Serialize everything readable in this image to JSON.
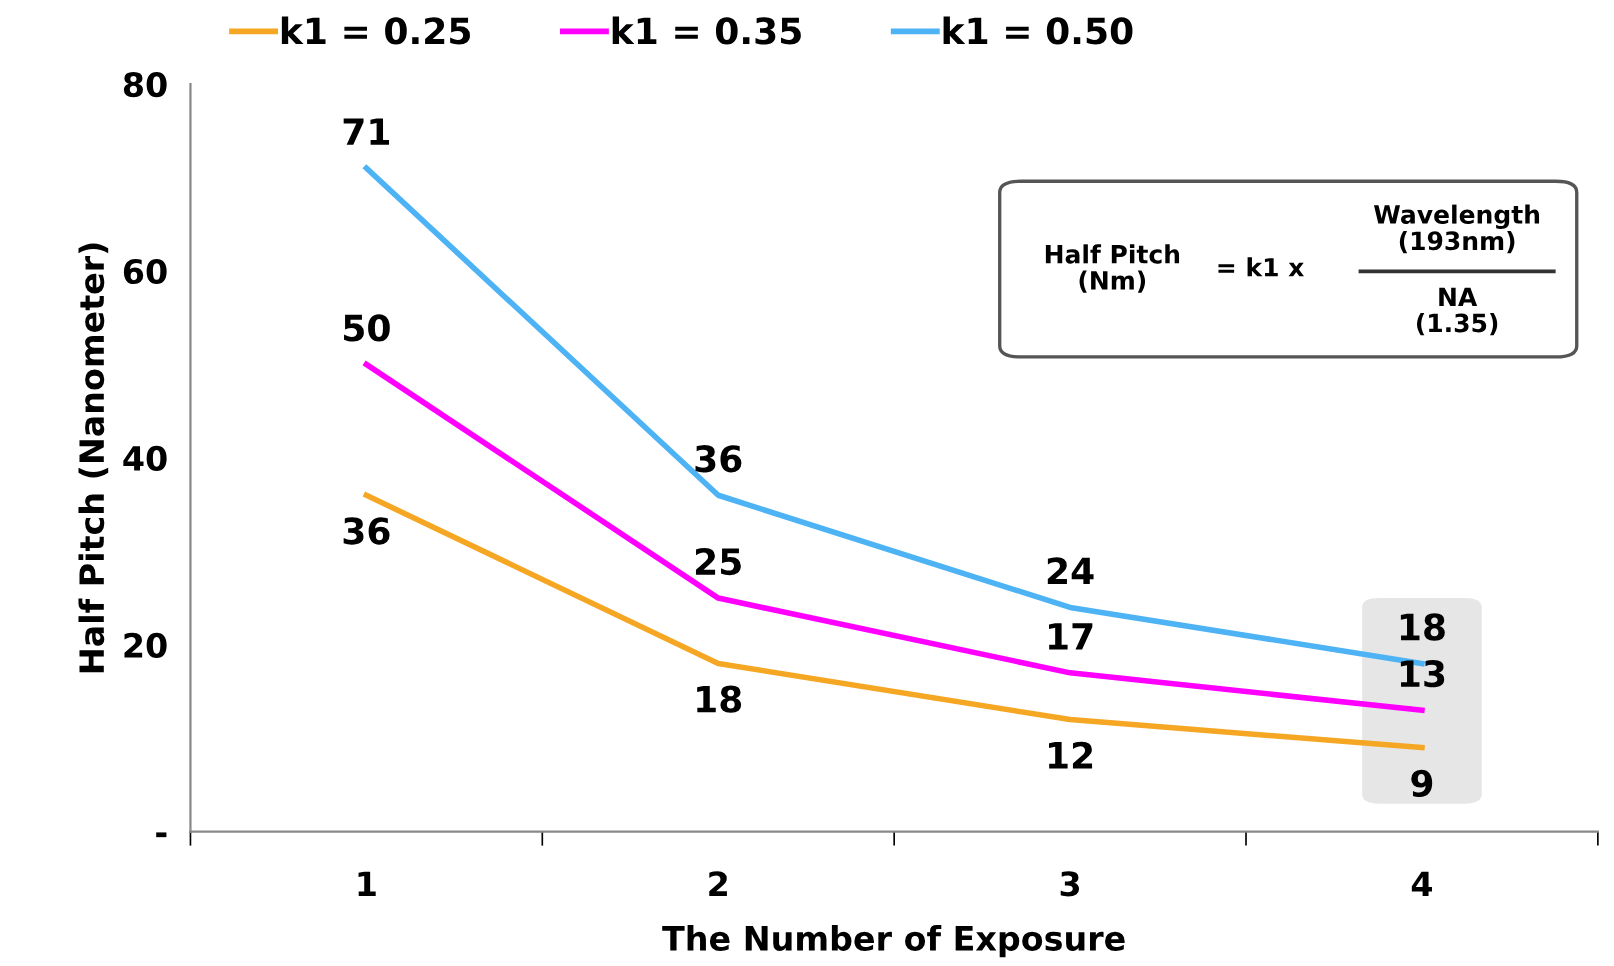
{
  "chart_data": {
    "type": "line",
    "xlabel": "The Number of Exposure",
    "ylabel": "Half Pitch (Nanometer)",
    "categories": [
      "1",
      "2",
      "3",
      "4"
    ],
    "series": [
      {
        "name": "k1 = 0.25",
        "color": "#f5a623",
        "values": [
          36,
          18,
          12,
          9
        ]
      },
      {
        "name": "k1 = 0.35",
        "color": "#ff00ff",
        "values": [
          50,
          25,
          17,
          13
        ]
      },
      {
        "name": "k1 = 0.50",
        "color": "#4db3f5",
        "values": [
          71,
          36,
          24,
          18
        ]
      }
    ],
    "ylim": [
      0,
      80
    ],
    "yticks": [
      {
        "value": 0,
        "label": "-"
      },
      20,
      40,
      60,
      80
    ],
    "data_labels": true,
    "grid": false,
    "legend": "top",
    "marker": "none",
    "line_style": "solid",
    "annotations": [
      "Half Pitch\n(Nm)",
      "= k1 x",
      "Wavelength\n(193nm)",
      "NA\n(1.35)"
    ]
  }
}
